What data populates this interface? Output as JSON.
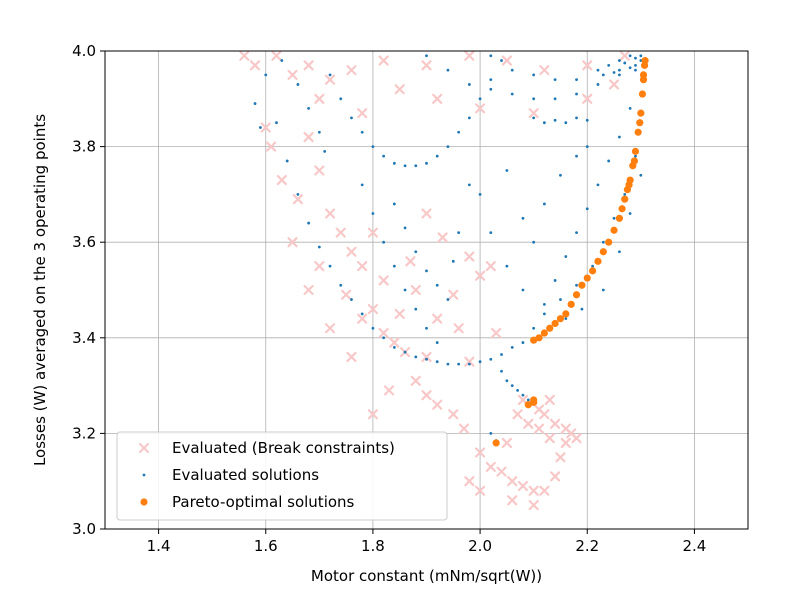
{
  "chart_data": {
    "type": "scatter",
    "xlabel": "Motor constant (mNm/sqrt(W))",
    "ylabel": "Losses (W) averaged on the 3 operating points",
    "xlim": [
      1.3,
      2.5
    ],
    "ylim": [
      3.0,
      4.0
    ],
    "x_ticks": [
      "1.4",
      "1.6",
      "1.8",
      "2.0",
      "2.2",
      "2.4"
    ],
    "y_ticks": [
      "3.0",
      "3.2",
      "3.4",
      "3.6",
      "3.8",
      "4.0"
    ],
    "grid": true,
    "legend_position": "lower-left",
    "series": [
      {
        "name": "Evaluated (Break constraints)",
        "marker": "x",
        "color": "#f8c8c8",
        "points": [
          [
            1.62,
            3.99
          ],
          [
            1.65,
            3.95
          ],
          [
            1.68,
            3.97
          ],
          [
            1.72,
            3.94
          ],
          [
            1.76,
            3.96
          ],
          [
            1.82,
            3.98
          ],
          [
            1.9,
            3.97
          ],
          [
            1.98,
            3.99
          ],
          [
            2.05,
            3.98
          ],
          [
            2.12,
            3.96
          ],
          [
            2.2,
            3.97
          ],
          [
            2.27,
            3.99
          ],
          [
            1.6,
            3.84
          ],
          [
            1.61,
            3.8
          ],
          [
            1.63,
            3.73
          ],
          [
            1.66,
            3.69
          ],
          [
            1.68,
            3.82
          ],
          [
            1.7,
            3.75
          ],
          [
            1.72,
            3.66
          ],
          [
            1.74,
            3.62
          ],
          [
            1.76,
            3.58
          ],
          [
            1.78,
            3.55
          ],
          [
            1.8,
            3.62
          ],
          [
            1.82,
            3.52
          ],
          [
            1.75,
            3.49
          ],
          [
            1.78,
            3.44
          ],
          [
            1.8,
            3.46
          ],
          [
            1.82,
            3.41
          ],
          [
            1.84,
            3.39
          ],
          [
            1.86,
            3.37
          ],
          [
            1.88,
            3.31
          ],
          [
            1.9,
            3.28
          ],
          [
            1.92,
            3.26
          ],
          [
            1.95,
            3.24
          ],
          [
            1.97,
            3.21
          ],
          [
            1.8,
            3.24
          ],
          [
            1.95,
            3.49
          ],
          [
            1.98,
            3.57
          ],
          [
            2.0,
            3.53
          ],
          [
            2.02,
            3.55
          ],
          [
            1.93,
            3.61
          ],
          [
            1.9,
            3.66
          ],
          [
            1.87,
            3.56
          ],
          [
            1.83,
            3.29
          ],
          [
            1.9,
            3.36
          ],
          [
            1.98,
            3.35
          ],
          [
            2.0,
            3.16
          ],
          [
            2.02,
            3.13
          ],
          [
            2.04,
            3.12
          ],
          [
            2.06,
            3.1
          ],
          [
            2.08,
            3.09
          ],
          [
            2.1,
            3.08
          ],
          [
            2.12,
            3.08
          ],
          [
            2.14,
            3.11
          ],
          [
            2.15,
            3.15
          ],
          [
            2.16,
            3.18
          ],
          [
            2.17,
            3.2
          ],
          [
            2.12,
            3.24
          ],
          [
            2.14,
            3.22
          ],
          [
            2.16,
            3.21
          ],
          [
            2.18,
            3.19
          ],
          [
            2.13,
            3.19
          ],
          [
            2.11,
            3.21
          ],
          [
            2.09,
            3.22
          ],
          [
            2.11,
            3.25
          ],
          [
            2.13,
            3.27
          ],
          [
            2.07,
            3.24
          ],
          [
            2.08,
            3.27
          ],
          [
            1.98,
            3.1
          ],
          [
            2.0,
            3.08
          ],
          [
            2.06,
            3.06
          ],
          [
            2.1,
            3.05
          ],
          [
            2.05,
            3.18
          ],
          [
            1.85,
            3.92
          ],
          [
            1.92,
            3.9
          ],
          [
            2.0,
            3.88
          ],
          [
            2.1,
            3.87
          ],
          [
            2.2,
            3.9
          ],
          [
            2.25,
            3.93
          ],
          [
            1.7,
            3.9
          ],
          [
            1.78,
            3.87
          ],
          [
            1.58,
            3.97
          ],
          [
            1.56,
            3.99
          ],
          [
            1.65,
            3.6
          ],
          [
            1.7,
            3.55
          ],
          [
            1.68,
            3.5
          ],
          [
            1.72,
            3.42
          ],
          [
            1.76,
            3.36
          ],
          [
            1.85,
            3.45
          ],
          [
            1.88,
            3.5
          ],
          [
            1.92,
            3.44
          ],
          [
            1.96,
            3.42
          ],
          [
            2.03,
            3.41
          ]
        ]
      },
      {
        "name": "Evaluated solutions",
        "marker": "dot",
        "color": "#1f77b4",
        "points": [
          [
            1.72,
            3.95
          ],
          [
            1.74,
            3.9
          ],
          [
            1.76,
            3.86
          ],
          [
            1.78,
            3.83
          ],
          [
            1.8,
            3.8
          ],
          [
            1.82,
            3.78
          ],
          [
            1.84,
            3.765
          ],
          [
            1.86,
            3.76
          ],
          [
            1.88,
            3.76
          ],
          [
            1.9,
            3.765
          ],
          [
            1.92,
            3.78
          ],
          [
            1.94,
            3.8
          ],
          [
            1.96,
            3.83
          ],
          [
            1.98,
            3.86
          ],
          [
            2.0,
            3.9
          ],
          [
            2.02,
            3.94
          ],
          [
            2.04,
            3.98
          ],
          [
            1.9,
            3.99
          ],
          [
            1.94,
            3.96
          ],
          [
            1.98,
            3.93
          ],
          [
            2.02,
            3.92
          ],
          [
            2.06,
            3.91
          ],
          [
            2.1,
            3.9
          ],
          [
            2.14,
            3.9
          ],
          [
            2.18,
            3.91
          ],
          [
            2.22,
            3.93
          ],
          [
            2.26,
            3.95
          ],
          [
            2.29,
            3.97
          ],
          [
            2.02,
            3.99
          ],
          [
            2.06,
            3.96
          ],
          [
            2.1,
            3.95
          ],
          [
            2.14,
            3.94
          ],
          [
            2.18,
            3.94
          ],
          [
            2.22,
            3.96
          ],
          [
            2.26,
            3.98
          ],
          [
            2.1,
            3.86
          ],
          [
            2.12,
            3.85
          ],
          [
            2.14,
            3.855
          ],
          [
            2.16,
            3.85
          ],
          [
            2.18,
            3.86
          ],
          [
            2.2,
            3.855
          ],
          [
            1.6,
            3.95
          ],
          [
            1.62,
            3.85
          ],
          [
            1.64,
            3.77
          ],
          [
            1.66,
            3.7
          ],
          [
            1.68,
            3.64
          ],
          [
            1.7,
            3.59
          ],
          [
            1.72,
            3.55
          ],
          [
            1.74,
            3.51
          ],
          [
            1.76,
            3.48
          ],
          [
            1.78,
            3.45
          ],
          [
            1.8,
            3.42
          ],
          [
            1.82,
            3.4
          ],
          [
            1.84,
            3.38
          ],
          [
            1.86,
            3.37
          ],
          [
            1.88,
            3.36
          ],
          [
            1.9,
            3.355
          ],
          [
            1.92,
            3.35
          ],
          [
            1.94,
            3.345
          ],
          [
            1.96,
            3.345
          ],
          [
            1.98,
            3.345
          ],
          [
            2.0,
            3.35
          ],
          [
            2.02,
            3.355
          ],
          [
            2.04,
            3.365
          ],
          [
            2.06,
            3.38
          ],
          [
            2.08,
            3.39
          ],
          [
            1.78,
            3.72
          ],
          [
            1.8,
            3.66
          ],
          [
            1.82,
            3.6
          ],
          [
            1.84,
            3.55
          ],
          [
            1.86,
            3.5
          ],
          [
            1.88,
            3.46
          ],
          [
            1.9,
            3.42
          ],
          [
            1.92,
            3.39
          ],
          [
            1.84,
            3.68
          ],
          [
            1.86,
            3.63
          ],
          [
            1.88,
            3.58
          ],
          [
            1.9,
            3.54
          ],
          [
            1.92,
            3.51
          ],
          [
            1.94,
            3.48
          ],
          [
            2.04,
            3.33
          ],
          [
            2.05,
            3.31
          ],
          [
            2.06,
            3.3
          ],
          [
            2.07,
            3.29
          ],
          [
            2.08,
            3.28
          ],
          [
            2.09,
            3.27
          ],
          [
            2.02,
            3.2
          ],
          [
            2.03,
            3.185
          ],
          [
            1.58,
            3.89
          ],
          [
            1.59,
            3.84
          ],
          [
            1.63,
            3.98
          ],
          [
            1.66,
            3.93
          ],
          [
            1.68,
            3.88
          ],
          [
            1.7,
            3.83
          ],
          [
            1.71,
            3.79
          ],
          [
            2.1,
            3.42
          ],
          [
            2.12,
            3.47
          ],
          [
            2.14,
            3.52
          ],
          [
            2.16,
            3.57
          ],
          [
            2.18,
            3.62
          ],
          [
            2.2,
            3.67
          ],
          [
            2.22,
            3.72
          ],
          [
            2.24,
            3.77
          ],
          [
            2.26,
            3.82
          ],
          [
            2.28,
            3.88
          ],
          [
            2.12,
            3.45
          ],
          [
            2.15,
            3.48
          ],
          [
            2.18,
            3.51
          ],
          [
            2.21,
            3.55
          ],
          [
            2.23,
            3.6
          ],
          [
            2.25,
            3.65
          ],
          [
            2.27,
            3.7
          ],
          [
            2.29,
            3.78
          ],
          [
            2.0,
            3.7
          ],
          [
            2.02,
            3.62
          ],
          [
            2.05,
            3.55
          ],
          [
            2.08,
            3.5
          ],
          [
            2.1,
            3.6
          ],
          [
            2.12,
            3.68
          ],
          [
            2.15,
            3.74
          ],
          [
            2.18,
            3.78
          ],
          [
            2.2,
            3.8
          ],
          [
            2.05,
            3.75
          ],
          [
            1.96,
            3.62
          ],
          [
            1.98,
            3.72
          ],
          [
            1.95,
            3.56
          ],
          [
            2.08,
            3.65
          ],
          [
            2.16,
            3.44
          ],
          [
            2.19,
            3.46
          ],
          [
            2.23,
            3.5
          ],
          [
            2.26,
            3.58
          ],
          [
            2.28,
            3.66
          ],
          [
            2.3,
            3.74
          ],
          [
            2.28,
            3.99
          ],
          [
            2.29,
            3.985
          ],
          [
            2.3,
            3.98
          ],
          [
            2.27,
            3.975
          ],
          [
            2.28,
            3.965
          ],
          [
            2.29,
            3.96
          ],
          [
            2.25,
            3.955
          ],
          [
            2.23,
            3.95
          ],
          [
            2.3,
            3.99
          ],
          [
            2.24,
            3.97
          ],
          [
            2.26,
            3.96
          ]
        ]
      },
      {
        "name": "Pareto-optimal solutions",
        "marker": "circle",
        "color": "#ff7f0e",
        "points": [
          [
            2.1,
            3.265
          ],
          [
            2.1,
            3.27
          ],
          [
            2.09,
            3.26
          ],
          [
            2.03,
            3.18
          ],
          [
            2.1,
            3.395
          ],
          [
            2.11,
            3.4
          ],
          [
            2.12,
            3.41
          ],
          [
            2.13,
            3.42
          ],
          [
            2.14,
            3.43
          ],
          [
            2.15,
            3.44
          ],
          [
            2.16,
            3.45
          ],
          [
            2.17,
            3.47
          ],
          [
            2.18,
            3.49
          ],
          [
            2.19,
            3.51
          ],
          [
            2.2,
            3.525
          ],
          [
            2.21,
            3.54
          ],
          [
            2.22,
            3.56
          ],
          [
            2.23,
            3.58
          ],
          [
            2.24,
            3.6
          ],
          [
            2.25,
            3.625
          ],
          [
            2.26,
            3.65
          ],
          [
            2.265,
            3.67
          ],
          [
            2.27,
            3.69
          ],
          [
            2.275,
            3.71
          ],
          [
            2.28,
            3.73
          ],
          [
            2.285,
            3.76
          ],
          [
            2.29,
            3.79
          ],
          [
            2.295,
            3.83
          ],
          [
            2.3,
            3.87
          ],
          [
            2.303,
            3.91
          ],
          [
            2.305,
            3.94
          ],
          [
            2.307,
            3.97
          ],
          [
            2.308,
            3.98
          ],
          [
            2.305,
            3.95
          ],
          [
            2.298,
            3.85
          ],
          [
            2.288,
            3.77
          ],
          [
            2.278,
            3.72
          ]
        ]
      }
    ]
  }
}
